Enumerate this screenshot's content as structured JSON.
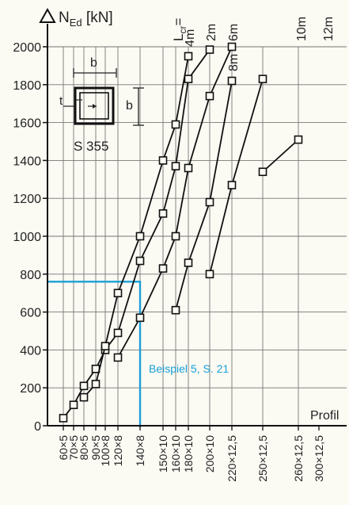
{
  "chart_data": {
    "type": "line",
    "ylabel_main": "N",
    "ylabel_sub": "Ed",
    "ylabel_unit": " [kN]",
    "lcr_label_main": "L",
    "lcr_label_sub": "cr",
    "lcr_label_eq": "=",
    "inset_b_top": "b",
    "inset_b_side": "b",
    "inset_t": "t",
    "steel_grade": "S 355",
    "x_axis_title": "Profil",
    "ylim": [
      0,
      2000
    ],
    "yticks": [
      0,
      200,
      400,
      600,
      800,
      1000,
      1200,
      1400,
      1600,
      1800,
      2000
    ],
    "grid": true,
    "categories": [
      "60×5",
      "70×5",
      "80×5",
      "90×5",
      "100×8",
      "120×8",
      "140×8",
      "150×10",
      "160×10",
      "180×10",
      "200×10",
      "220×12,5",
      "250×12,5",
      "260×12,5",
      "300×12,5"
    ],
    "series": [
      {
        "name": "2m",
        "points": [
          [
            0,
            40
          ],
          [
            1,
            110
          ],
          [
            2,
            210
          ],
          [
            3,
            300
          ],
          [
            4,
            400
          ],
          [
            5,
            490
          ],
          [
            6,
            870
          ],
          [
            7,
            1120
          ],
          [
            8,
            1370
          ],
          [
            9,
            1830
          ],
          [
            10,
            1985
          ]
        ]
      },
      {
        "name": "4m",
        "points": [
          [
            2,
            150
          ],
          [
            3,
            220
          ],
          [
            4,
            420
          ],
          [
            5,
            700
          ],
          [
            6,
            1000
          ],
          [
            7,
            1400
          ],
          [
            8,
            1590
          ],
          [
            9,
            1950
          ]
        ]
      },
      {
        "name": "6m",
        "points": [
          [
            5,
            360
          ],
          [
            6,
            570
          ],
          [
            7,
            830
          ],
          [
            8,
            1000
          ],
          [
            9,
            1360
          ],
          [
            10,
            1740
          ],
          [
            11,
            2000
          ]
        ]
      },
      {
        "name": "8m",
        "points": [
          [
            8,
            610
          ],
          [
            9,
            860
          ],
          [
            10,
            1180
          ],
          [
            11,
            1820
          ]
        ]
      },
      {
        "name": "10m",
        "points": [
          [
            10,
            800
          ],
          [
            11,
            1270
          ],
          [
            12,
            1830
          ]
        ]
      },
      {
        "name": "12m",
        "points": [
          [
            12,
            1340
          ],
          [
            13,
            1510
          ]
        ]
      }
    ],
    "example": {
      "label": "Beispiel 5, S. 21",
      "y": 760,
      "category": "140×8",
      "color": "#1aa0d8"
    }
  }
}
